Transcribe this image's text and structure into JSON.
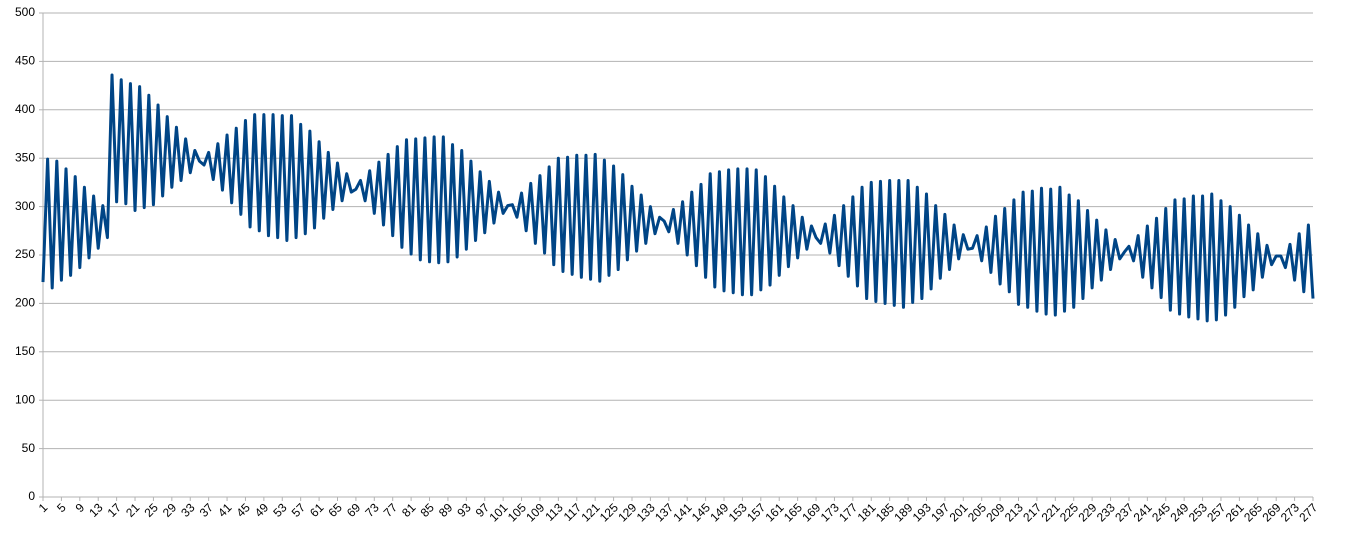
{
  "chart_data": {
    "type": "line",
    "color": "#004586",
    "grid": true,
    "ylim": [
      0,
      500
    ],
    "yticks": [
      0,
      50,
      100,
      150,
      200,
      250,
      300,
      350,
      400,
      450,
      500
    ],
    "categories": [
      "1",
      null,
      null,
      null,
      "5",
      null,
      null,
      null,
      "9",
      null,
      null,
      null,
      "13",
      null,
      null,
      null,
      "17",
      null,
      null,
      null,
      "21",
      null,
      null,
      null,
      "25",
      null,
      null,
      null,
      "29",
      null,
      null,
      null,
      "33",
      null,
      null,
      null,
      "37",
      null,
      null,
      null,
      "41",
      null,
      null,
      null,
      "45",
      null,
      null,
      null,
      "49",
      null,
      null,
      null,
      "53",
      null,
      null,
      null,
      "57",
      null,
      null,
      null,
      "61",
      null,
      null,
      null,
      "65",
      null,
      null,
      null,
      "69",
      null,
      null,
      null,
      "73",
      null,
      null,
      null,
      "77",
      null,
      null,
      null,
      "81",
      null,
      null,
      null,
      "85",
      null,
      null,
      null,
      "89",
      null,
      null,
      null,
      "93",
      null,
      null,
      null,
      "97",
      null,
      null,
      null,
      "101",
      null,
      null,
      null,
      "105",
      null,
      null,
      null,
      "109",
      null,
      null,
      null,
      "113",
      null,
      null,
      null,
      "117",
      null,
      null,
      null,
      "121",
      null,
      null,
      null,
      "125",
      null,
      null,
      null,
      "129",
      null,
      null,
      null,
      "133",
      null,
      null,
      null,
      "137",
      null,
      null,
      null,
      "141",
      null,
      null,
      null,
      "145",
      null,
      null,
      null,
      "149",
      null,
      null,
      null,
      "153",
      null,
      null,
      null,
      "157",
      null,
      null,
      null,
      "161",
      null,
      null,
      null,
      "165",
      null,
      null,
      null,
      "169",
      null,
      null,
      null,
      "173",
      null,
      null,
      null,
      "177",
      null,
      null,
      null,
      "181",
      null,
      null,
      null,
      "185",
      null,
      null,
      null,
      "189",
      null,
      null,
      null,
      "193",
      null,
      null,
      null,
      "197",
      null,
      null,
      null,
      "201",
      null,
      null,
      null,
      "205",
      null,
      null,
      null,
      "209",
      null,
      null,
      null,
      "213",
      null,
      null,
      null,
      "217",
      null,
      null,
      null,
      "221",
      null,
      null,
      null,
      "225",
      null,
      null,
      null,
      "229",
      null,
      null,
      null,
      "233",
      null,
      null,
      null,
      "237",
      null,
      null,
      null,
      "241",
      null,
      null,
      null,
      "245",
      null,
      null,
      null,
      "249",
      null,
      null,
      null,
      "253",
      null,
      null,
      null,
      "257",
      null,
      null,
      null,
      "261",
      null,
      null,
      null,
      "265",
      null,
      null,
      null,
      "269",
      null,
      null,
      null,
      "273",
      null,
      null,
      null,
      "277"
    ],
    "values": [
      222,
      349,
      216,
      347,
      224,
      339,
      229,
      331,
      237,
      320,
      247,
      311,
      257,
      301,
      268,
      436,
      305,
      431,
      303,
      427,
      296,
      424,
      299,
      415,
      302,
      405,
      311,
      393,
      320,
      382,
      327,
      370,
      335,
      358,
      347,
      343,
      356,
      328,
      365,
      317,
      374,
      304,
      381,
      292,
      389,
      279,
      395,
      275,
      395,
      270,
      395,
      268,
      394,
      265,
      394,
      268,
      385,
      272,
      378,
      278,
      367,
      288,
      356,
      297,
      345,
      306,
      334,
      315,
      318,
      327,
      306,
      337,
      293,
      346,
      281,
      354,
      270,
      362,
      258,
      369,
      251,
      370,
      245,
      371,
      243,
      372,
      242,
      372,
      243,
      364,
      248,
      358,
      256,
      347,
      265,
      336,
      273,
      326,
      283,
      315,
      293,
      301,
      302,
      289,
      314,
      275,
      324,
      262,
      332,
      252,
      341,
      240,
      350,
      233,
      351,
      230,
      353,
      227,
      353,
      225,
      354,
      223,
      348,
      229,
      342,
      235,
      333,
      245,
      321,
      254,
      312,
      262,
      300,
      272,
      289,
      285,
      274,
      297,
      262,
      305,
      250,
      315,
      239,
      323,
      227,
      334,
      217,
      336,
      213,
      338,
      211,
      339,
      209,
      339,
      209,
      338,
      214,
      331,
      219,
      321,
      229,
      310,
      238,
      301,
      247,
      289,
      256,
      280,
      268,
      262,
      282,
      252,
      291,
      239,
      301,
      228,
      310,
      218,
      320,
      205,
      325,
      202,
      326,
      200,
      327,
      198,
      327,
      196,
      327,
      201,
      320,
      205,
      313,
      215,
      301,
      226,
      292,
      235,
      281,
      246,
      271,
      256,
      257,
      270,
      244,
      279,
      232,
      290,
      220,
      298,
      212,
      307,
      199,
      315,
      196,
      316,
      192,
      319,
      189,
      318,
      188,
      320,
      192,
      312,
      196,
      306,
      205,
      296,
      216,
      286,
      224,
      276,
      235,
      266,
      246,
      253,
      259,
      244,
      270,
      227,
      280,
      216,
      288,
      206,
      298,
      193,
      307,
      189,
      308,
      186,
      311,
      184,
      311,
      182,
      313,
      183,
      306,
      188,
      300,
      196,
      291,
      207,
      281,
      214,
      272,
      227,
      260,
      240,
      249,
      249,
      237,
      261,
      224,
      272,
      212,
      281,
      205
    ]
  }
}
